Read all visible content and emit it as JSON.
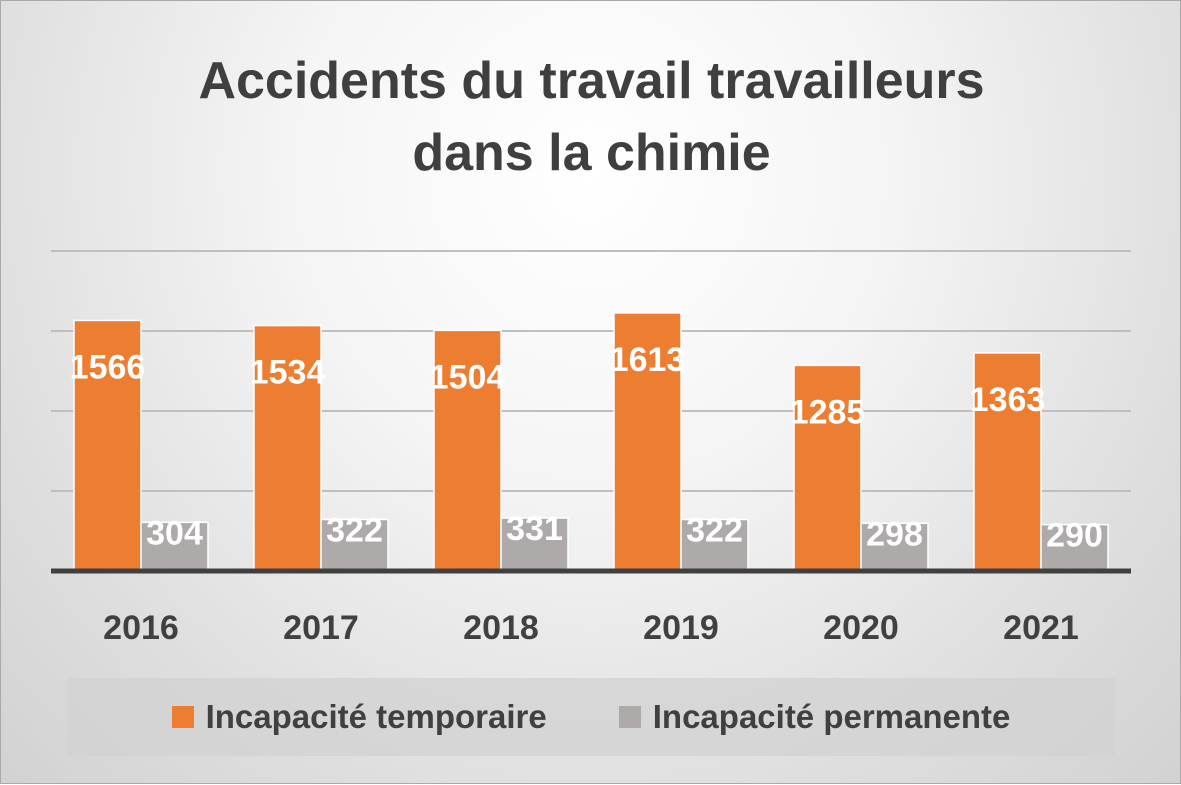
{
  "chart_data": {
    "type": "bar",
    "title_lines": [
      "Accidents du travail travailleurs",
      "dans la chimie"
    ],
    "categories": [
      "2016",
      "2017",
      "2018",
      "2019",
      "2020",
      "2021"
    ],
    "series": [
      {
        "name": "Incapacité temporaire",
        "values": [
          1566,
          1534,
          1504,
          1613,
          1285,
          1363
        ],
        "color": "#ed7d31"
      },
      {
        "name": "Incapacité permanente",
        "values": [
          304,
          322,
          331,
          322,
          298,
          290
        ],
        "color": "#aeaaaa"
      }
    ],
    "xlabel": "",
    "ylabel": "",
    "ylim": [
      0,
      2000
    ],
    "grid": true,
    "legend_position": "bottom",
    "data_labels": true,
    "data_label_color": "#ffffff",
    "axis_color": "#404040",
    "gridline_color": "#bfbfbf"
  }
}
